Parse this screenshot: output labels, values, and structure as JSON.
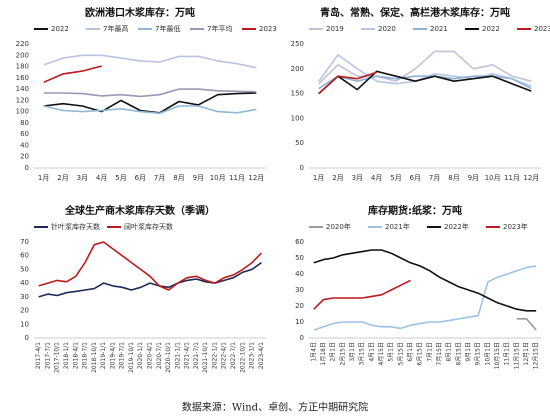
{
  "chart_data": [
    {
      "type": "line",
      "title": "欧洲港口木浆库存：万吨",
      "categories": [
        "1月",
        "2月",
        "3月",
        "4月",
        "5月",
        "6月",
        "7月",
        "8月",
        "9月",
        "10月",
        "11月",
        "12月"
      ],
      "ylim": [
        0,
        220
      ],
      "yticks": [
        0,
        20,
        40,
        60,
        80,
        100,
        120,
        140,
        160,
        180,
        200,
        220
      ],
      "grid": false,
      "series": [
        {
          "name": "2022",
          "color": "#111111",
          "values": [
            110,
            114,
            110,
            100,
            120,
            102,
            98,
            118,
            112,
            130,
            132,
            133
          ]
        },
        {
          "name": "7年最高",
          "color": "#b9c2e6",
          "values": [
            183,
            195,
            200,
            200,
            195,
            190,
            188,
            198,
            198,
            190,
            185,
            178
          ]
        },
        {
          "name": "7年最低",
          "color": "#8fb8d8",
          "values": [
            110,
            102,
            100,
            102,
            105,
            100,
            97,
            110,
            110,
            100,
            98,
            104
          ]
        },
        {
          "name": "7年平均",
          "color": "#9b97b6",
          "values": [
            133,
            133,
            132,
            128,
            130,
            127,
            130,
            140,
            140,
            137,
            136,
            135
          ]
        },
        {
          "name": "2023",
          "color": "#c0191d",
          "values": [
            152,
            167,
            172,
            181,
            null,
            null,
            null,
            null,
            null,
            null,
            null,
            null
          ]
        }
      ]
    },
    {
      "type": "line",
      "title": "青岛、常熟、保定、高栏港木浆库存：万吨",
      "categories": [
        "1月",
        "2月",
        "3月",
        "4月",
        "5月",
        "6月",
        "7月",
        "8月",
        "9月",
        "10月",
        "11月",
        "12月"
      ],
      "ylim": [
        0,
        250
      ],
      "yticks": [
        0,
        50,
        100,
        150,
        200,
        250
      ],
      "grid": false,
      "series": [
        {
          "name": "2019",
          "color": "#c6c0d6",
          "values": [
            170,
            208,
            185,
            185,
            175,
            200,
            235,
            235,
            200,
            208,
            185,
            175
          ]
        },
        {
          "name": "2020",
          "color": "#b6c4ea",
          "values": [
            175,
            228,
            200,
            175,
            170,
            175,
            190,
            185,
            180,
            190,
            180,
            165
          ]
        },
        {
          "name": "2021",
          "color": "#8cb3d4",
          "values": [
            160,
            185,
            175,
            185,
            180,
            185,
            185,
            180,
            185,
            185,
            180,
            160
          ]
        },
        {
          "name": "2022",
          "color": "#111111",
          "values": [
            150,
            185,
            158,
            195,
            185,
            175,
            185,
            175,
            180,
            185,
            170,
            155
          ]
        },
        {
          "name": "2023",
          "color": "#c0191d",
          "values": [
            150,
            185,
            180,
            193,
            null,
            null,
            null,
            null,
            null,
            null,
            null,
            null
          ]
        }
      ]
    },
    {
      "type": "line",
      "title": "全球生产商木浆库存天数（季调）",
      "categories": [
        "2017-4/1",
        "2017-7/1",
        "2017-10/1",
        "2018-1/1",
        "2018-4/1",
        "2018-7/1",
        "2018-10/1",
        "2019-1/1",
        "2019-4/1",
        "2019-7/1",
        "2019-10/1",
        "2020-1/1",
        "2020-4/1",
        "2020-7/1",
        "2020-10/1",
        "2021-1/1",
        "2021-4/1",
        "2021-7/1",
        "2021-10/1",
        "2022-1/1",
        "2022-4/1",
        "2022-7/1",
        "2022-10/1",
        "2023-1/1",
        "2023-4/1"
      ],
      "ylim": [
        0,
        70
      ],
      "yticks": [
        0,
        10,
        20,
        30,
        40,
        50,
        60,
        70
      ],
      "grid": false,
      "series": [
        {
          "name": "针叶浆库存天数",
          "color": "#1f2a5a",
          "values": [
            30,
            32,
            31,
            33,
            34,
            35,
            36,
            40,
            38,
            37,
            35,
            37,
            40,
            38,
            37,
            40,
            42,
            43,
            41,
            40,
            42,
            44,
            48,
            50,
            55
          ]
        },
        {
          "name": "阔叶浆库存天数",
          "color": "#c0191d",
          "values": [
            38,
            40,
            42,
            41,
            45,
            55,
            68,
            70,
            65,
            60,
            55,
            50,
            45,
            38,
            35,
            40,
            44,
            45,
            42,
            40,
            44,
            46,
            50,
            55,
            62
          ]
        }
      ]
    },
    {
      "type": "line",
      "title": "库存期货:纸浆：万吨",
      "categories": [
        "1月4日",
        "1月18日",
        "2月1日",
        "2月15日",
        "3月1日",
        "3月15日",
        "4月1日",
        "4月15日",
        "5月1日",
        "5月15日",
        "6月1日",
        "6月15日",
        "7月1日",
        "7月15日",
        "8月1日",
        "8月15日",
        "9月1日",
        "9月15日",
        "10月1日",
        "10月15日",
        "11月1日",
        "11月15日",
        "12月1日",
        "12月15日"
      ],
      "ylim": [
        0,
        60
      ],
      "yticks": [
        0,
        10,
        20,
        30,
        40,
        50,
        60
      ],
      "grid": false,
      "series": [
        {
          "name": "2020年",
          "color": "#9a9a9a",
          "values": [
            null,
            null,
            null,
            null,
            null,
            null,
            null,
            null,
            null,
            null,
            null,
            null,
            null,
            null,
            null,
            null,
            null,
            null,
            null,
            null,
            null,
            12,
            12,
            5
          ]
        },
        {
          "name": "2021年",
          "color": "#9cc3e6",
          "values": [
            5,
            7,
            9,
            10,
            10,
            10,
            8,
            7,
            7,
            6,
            8,
            9,
            10,
            10,
            11,
            12,
            13,
            14,
            35,
            38,
            40,
            42,
            44,
            45
          ]
        },
        {
          "name": "2022年",
          "color": "#111111",
          "values": [
            47,
            49,
            50,
            52,
            53,
            54,
            55,
            55,
            53,
            50,
            47,
            45,
            42,
            38,
            35,
            32,
            30,
            28,
            25,
            22,
            20,
            18,
            17,
            17
          ]
        },
        {
          "name": "2023年",
          "color": "#c0191d",
          "values": [
            18,
            24,
            25,
            25,
            25,
            25,
            26,
            27,
            30,
            33,
            36,
            null,
            null,
            null,
            null,
            null,
            null,
            null,
            null,
            null,
            null,
            null,
            null,
            null
          ]
        }
      ]
    }
  ],
  "source": "数据来源：Wind、卓创、方正中期研究院"
}
